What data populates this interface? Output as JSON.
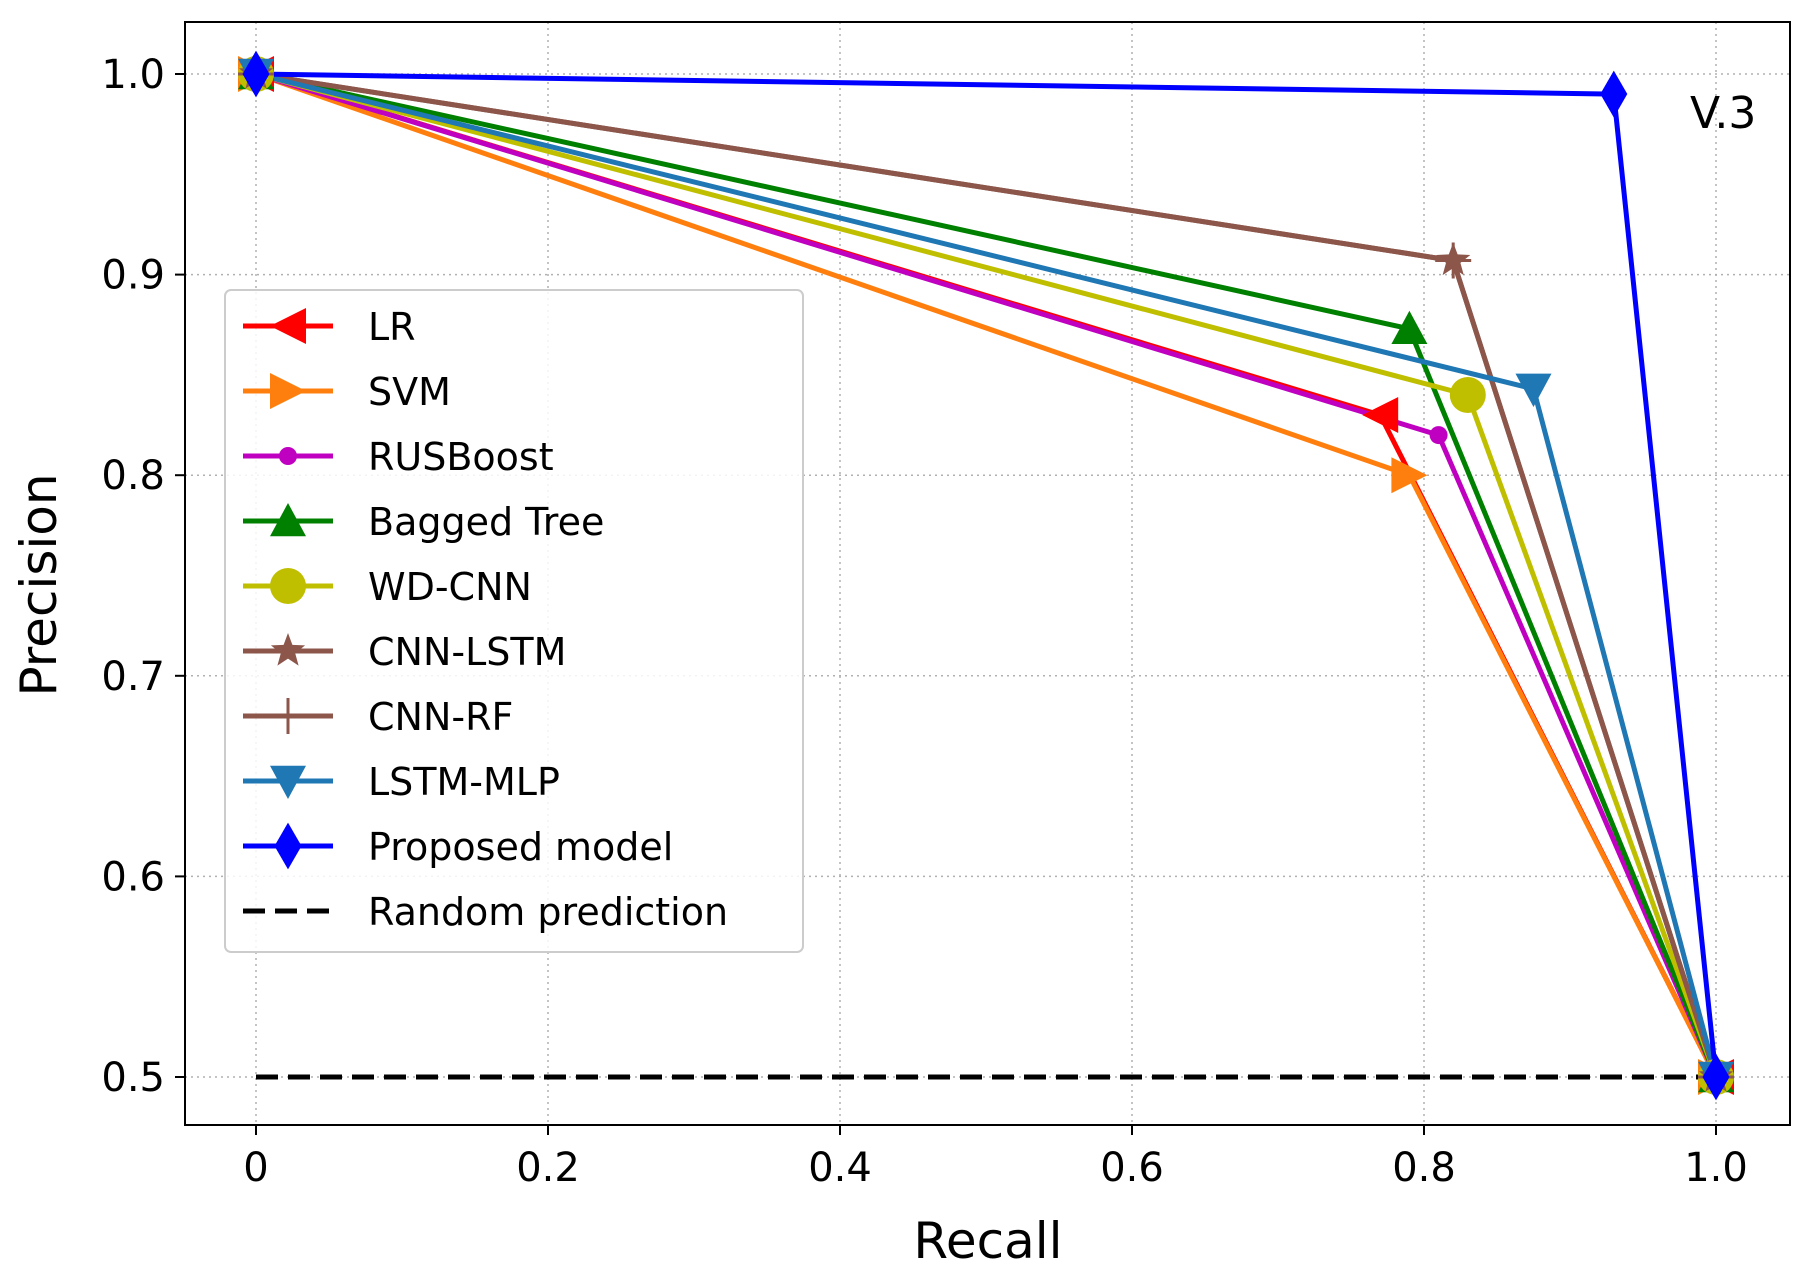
{
  "chart_data": {
    "type": "line",
    "title": "",
    "annotation": "V.3",
    "xlabel": "Recall",
    "ylabel": "Precision",
    "xlim": [
      -0.05,
      1.05
    ],
    "ylim": [
      0.475,
      1.025
    ],
    "xticks": [
      0,
      0.2,
      0.4,
      0.6,
      0.8,
      1.0
    ],
    "xtick_labels": [
      "0",
      "0.2",
      "0.4",
      "0.6",
      "0.8",
      "1.0"
    ],
    "yticks": [
      0.5,
      0.6,
      0.7,
      0.8,
      0.9,
      1.0
    ],
    "ytick_labels": [
      "0.5",
      "0.6",
      "0.7",
      "0.8",
      "0.9",
      "1.0"
    ],
    "grid": true,
    "legend_position": "center-left",
    "series": [
      {
        "name": "LR",
        "color": "#ff0000",
        "marker": "triangle-left",
        "x": [
          0,
          0.77,
          1.0
        ],
        "y": [
          1.0,
          0.83,
          0.5
        ]
      },
      {
        "name": "SVM",
        "color": "#ff7f0e",
        "marker": "triangle-right",
        "x": [
          0,
          0.79,
          1.0
        ],
        "y": [
          1.0,
          0.8,
          0.5
        ]
      },
      {
        "name": "RUSBoost",
        "color": "#c000c0",
        "marker": "small-circle",
        "x": [
          0,
          0.81,
          1.0
        ],
        "y": [
          1.0,
          0.82,
          0.5
        ]
      },
      {
        "name": "Bagged Tree",
        "color": "#008000",
        "marker": "triangle-up",
        "x": [
          0,
          0.79,
          1.0
        ],
        "y": [
          1.0,
          0.873,
          0.5
        ]
      },
      {
        "name": "WD-CNN",
        "color": "#bfbf00",
        "marker": "circle",
        "x": [
          0,
          0.83,
          1.0
        ],
        "y": [
          1.0,
          0.84,
          0.5
        ]
      },
      {
        "name": "CNN-LSTM",
        "color": "#8c564b",
        "marker": "star",
        "x": [
          0,
          0.82,
          1.0
        ],
        "y": [
          1.0,
          0.907,
          0.5
        ]
      },
      {
        "name": "CNN-RF",
        "color": "#8c564b",
        "marker": "plus",
        "x": [
          0,
          0.82,
          1.0
        ],
        "y": [
          1.0,
          0.907,
          0.5
        ]
      },
      {
        "name": "LSTM-MLP",
        "color": "#1f77b4",
        "marker": "triangle-down",
        "x": [
          0,
          0.875,
          1.0
        ],
        "y": [
          1.0,
          0.843,
          0.5
        ]
      },
      {
        "name": "Proposed model",
        "color": "#0000ff",
        "marker": "diamond",
        "x": [
          0,
          0.93,
          1.0
        ],
        "y": [
          1.0,
          0.99,
          0.5
        ]
      }
    ],
    "reference": {
      "name": "Random prediction",
      "color": "#000000",
      "style": "dashed",
      "x": [
        0,
        1.0
      ],
      "y": [
        0.5,
        0.5
      ]
    }
  }
}
